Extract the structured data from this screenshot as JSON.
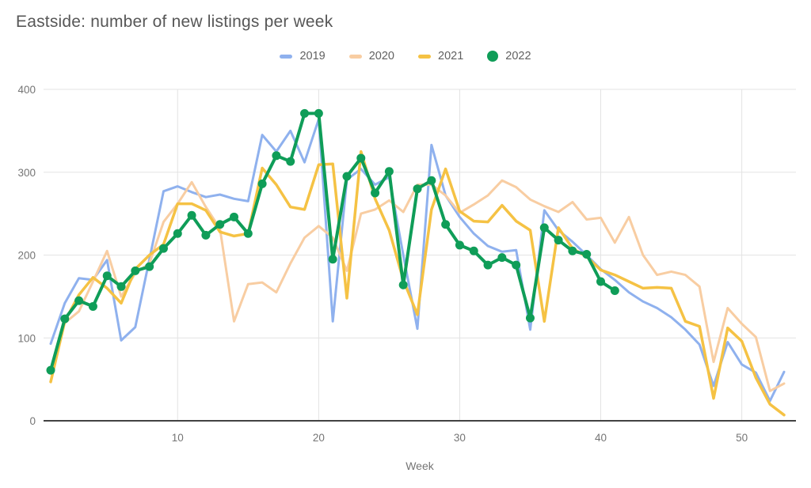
{
  "header": {
    "title": "Eastside: number of new listings per week"
  },
  "legend": {
    "items": [
      {
        "label": "2019",
        "color": "#8fb1ee",
        "marker": "dash"
      },
      {
        "label": "2020",
        "color": "#f8cda2",
        "marker": "dash"
      },
      {
        "label": "2021",
        "color": "#f5c244",
        "marker": "dash"
      },
      {
        "label": "2022",
        "color": "#0f9d58",
        "marker": "circle"
      }
    ]
  },
  "chart_data": {
    "type": "line",
    "title": "Eastside: number of new listings per week",
    "xlabel": "Week",
    "ylabel": "",
    "xlim": [
      1,
      53
    ],
    "ylim": [
      0,
      400
    ],
    "xticks": [
      10,
      20,
      30,
      40,
      50
    ],
    "yticks": [
      0,
      100,
      200,
      300,
      400
    ],
    "grid": true,
    "legend_position": "top",
    "x": [
      1,
      2,
      3,
      4,
      5,
      6,
      7,
      8,
      9,
      10,
      11,
      12,
      13,
      14,
      15,
      16,
      17,
      18,
      19,
      20,
      21,
      22,
      23,
      24,
      25,
      26,
      27,
      28,
      29,
      30,
      31,
      32,
      33,
      34,
      35,
      36,
      37,
      38,
      39,
      40,
      41,
      42,
      43,
      44,
      45,
      46,
      47,
      48,
      49,
      50,
      51,
      52,
      53
    ],
    "series": [
      {
        "name": "2019",
        "color": "#8fb1ee",
        "marker": "none",
        "line_width": 3,
        "values": [
          93,
          142,
          172,
          170,
          194,
          97,
          113,
          195,
          277,
          283,
          276,
          270,
          273,
          268,
          265,
          345,
          325,
          350,
          312,
          364,
          120,
          291,
          304,
          285,
          294,
          200,
          111,
          333,
          272,
          246,
          226,
          211,
          204,
          206,
          110,
          254,
          230,
          216,
          200,
          183,
          170,
          155,
          144,
          136,
          125,
          110,
          92,
          42,
          95,
          68,
          58,
          24,
          59
        ]
      },
      {
        "name": "2020",
        "color": "#f8cda2",
        "marker": "none",
        "line_width": 3,
        "values": [
          null,
          118,
          132,
          168,
          205,
          150,
          178,
          190,
          240,
          262,
          288,
          258,
          232,
          120,
          165,
          167,
          155,
          190,
          221,
          235,
          221,
          181,
          250,
          255,
          266,
          252,
          285,
          285,
          272,
          251,
          261,
          272,
          290,
          282,
          267,
          259,
          252,
          264,
          243,
          245,
          215,
          246,
          200,
          176,
          180,
          176,
          162,
          71,
          136,
          117,
          101,
          36,
          45
        ]
      },
      {
        "name": "2021",
        "color": "#f5c244",
        "marker": "none",
        "line_width": 3.5,
        "values": [
          47,
          120,
          152,
          173,
          160,
          142,
          183,
          200,
          213,
          262,
          262,
          254,
          228,
          223,
          226,
          305,
          285,
          258,
          255,
          309,
          310,
          148,
          325,
          268,
          230,
          170,
          128,
          255,
          304,
          253,
          241,
          240,
          260,
          241,
          230,
          120,
          233,
          208,
          198,
          182,
          176,
          168,
          160,
          161,
          160,
          120,
          114,
          27,
          112,
          96,
          52,
          20,
          7
        ]
      },
      {
        "name": "2022",
        "color": "#0f9d58",
        "marker": "circle",
        "line_width": 4,
        "values": [
          61,
          123,
          145,
          138,
          175,
          162,
          181,
          186,
          208,
          226,
          248,
          224,
          237,
          246,
          226,
          286,
          320,
          313,
          371,
          371,
          195,
          295,
          317,
          275,
          301,
          164,
          280,
          290,
          237,
          212,
          205,
          188,
          197,
          188,
          124,
          233,
          218,
          205,
          201,
          168,
          157,
          null,
          null,
          null,
          null,
          null,
          null,
          null,
          null,
          null,
          null,
          null,
          null
        ]
      }
    ]
  }
}
